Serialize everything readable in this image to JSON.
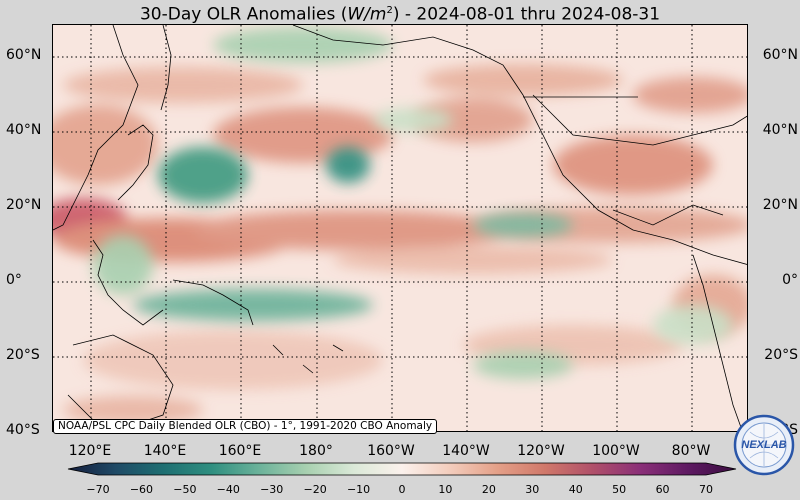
{
  "title": {
    "prefix": "30-Day OLR Anomalies (",
    "unit_base": "W/m",
    "unit_exp": "2",
    "suffix": ") - 2024-08-01 thru 2024-08-31"
  },
  "map": {
    "lat_labels": [
      "60°N",
      "40°N",
      "20°N",
      "0°",
      "20°S",
      "40°S"
    ],
    "lon_labels": [
      "120°E",
      "140°E",
      "160°E",
      "180°",
      "160°W",
      "140°W",
      "120°W",
      "100°W",
      "80°W"
    ],
    "credit": "NOAA/PSL CPC Daily Blended OLR (CBO) - 1°, 1991-2020 CBO Anomaly",
    "colors": {
      "positive_strong": "#d9826c",
      "positive_weak": "#f3d2c4",
      "negative_weak": "#c9e0c7",
      "negative_strong": "#3e9a80",
      "background": "#f8e6df"
    }
  },
  "colorbar": {
    "ticks": [
      "−70",
      "−60",
      "−50",
      "−40",
      "−30",
      "−20",
      "−10",
      "0",
      "10",
      "20",
      "30",
      "40",
      "50",
      "60",
      "70"
    ],
    "stops": [
      "#141d3d",
      "#1f4a66",
      "#1e6f72",
      "#2f8f80",
      "#6bb29a",
      "#a8d0b0",
      "#dbe9d8",
      "#fbf1ec",
      "#f3cdbd",
      "#e4a088",
      "#d0786a",
      "#b0506a",
      "#8a2f78",
      "#5e1a62",
      "#3a0d40"
    ]
  },
  "logo": {
    "text": "NEXLAB",
    "icon": "globe-icon"
  }
}
